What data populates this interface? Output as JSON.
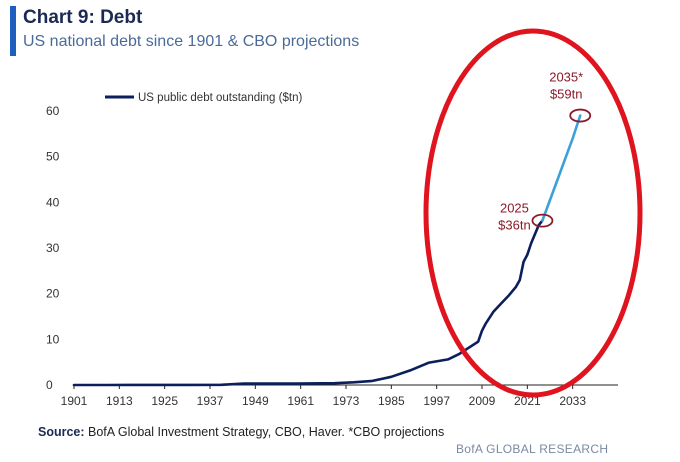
{
  "header": {
    "title": "Chart 9: Debt",
    "subtitle": "US national debt since 1901 & CBO projections",
    "accent_color": "#1f5fbf"
  },
  "footer": {
    "source_label": "Source:",
    "source_text": " BofA Global Investment Strategy, CBO, Haver. *CBO projections",
    "brand": "BofA GLOBAL RESEARCH"
  },
  "chart_data": {
    "type": "line",
    "title": "Chart 9: Debt",
    "subtitle": "US national debt since 1901 & CBO projections",
    "xlabel": "",
    "ylabel": "",
    "xlim": [
      1901,
      2045
    ],
    "ylim": [
      0,
      60
    ],
    "x_ticks": [
      1901,
      1913,
      1925,
      1937,
      1949,
      1961,
      1973,
      1985,
      1997,
      2009,
      2021,
      2033
    ],
    "y_ticks": [
      0,
      10,
      20,
      30,
      40,
      50,
      60
    ],
    "grid": false,
    "legend_position": "top-left",
    "series": [
      {
        "name": "US public debt outstanding ($tn)",
        "color": "#0b1f5c",
        "x": [
          1901,
          1910,
          1917,
          1919,
          1930,
          1940,
          1946,
          1950,
          1960,
          1970,
          1975,
          1980,
          1985,
          1990,
          1995,
          2000,
          2003,
          2005,
          2008,
          2009,
          2010,
          2012,
          2014,
          2016,
          2018,
          2019,
          2020,
          2021,
          2022,
          2023,
          2024,
          2025
        ],
        "y": [
          0,
          0,
          0.02,
          0.03,
          0.02,
          0.05,
          0.3,
          0.3,
          0.3,
          0.4,
          0.6,
          0.9,
          1.8,
          3.2,
          4.9,
          5.6,
          6.8,
          7.9,
          9.5,
          11.9,
          13.5,
          16.0,
          17.8,
          19.5,
          21.5,
          23.0,
          27.0,
          28.5,
          31.0,
          33.0,
          35.0,
          36.0
        ]
      },
      {
        "name": "CBO projection",
        "color": "#3ea0d8",
        "x": [
          2025,
          2027,
          2029,
          2031,
          2033,
          2035
        ],
        "y": [
          36.0,
          40.5,
          45.0,
          49.5,
          54.0,
          59.0
        ]
      }
    ],
    "annotations": [
      {
        "label_top": "2035*",
        "label_bottom": "$59tn",
        "x": 2035,
        "y": 59,
        "color": "#8b1a2b"
      },
      {
        "label_top": "2025",
        "label_bottom": "$36tn",
        "x": 2025,
        "y": 36,
        "color": "#8b1a2b"
      }
    ],
    "highlight_ellipse": {
      "color": "#e0141e"
    }
  }
}
